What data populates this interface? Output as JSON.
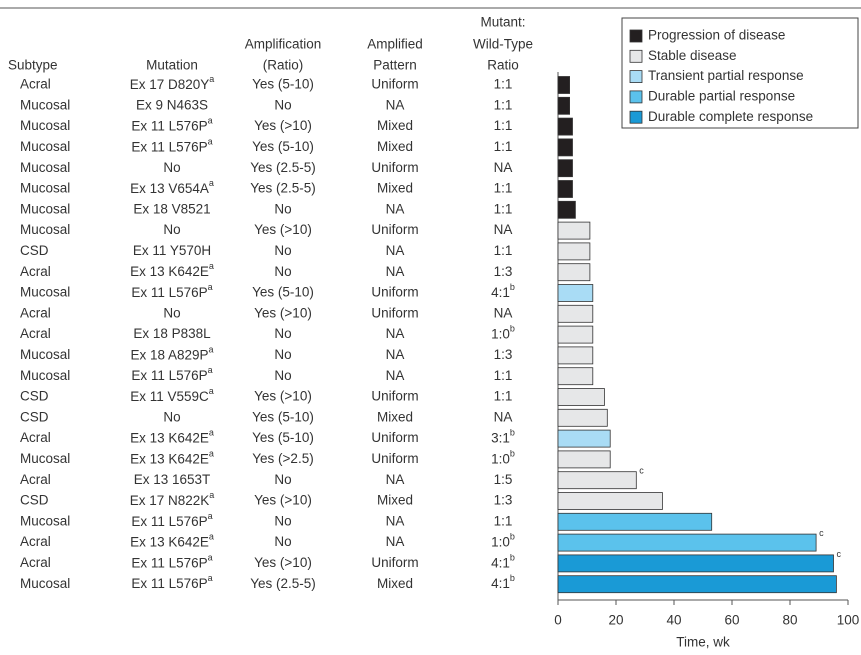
{
  "chart_data": {
    "type": "bar",
    "orientation": "horizontal",
    "columns": [
      [
        "Subtype"
      ],
      [
        "Mutation"
      ],
      [
        "Amplification",
        "(Ratio)"
      ],
      [
        "Amplified",
        "Pattern"
      ],
      [
        "Mutant:",
        "Wild-Type",
        "Ratio"
      ]
    ],
    "rows": [
      [
        "Acral",
        {
          "text": "Ex 17 D820Y",
          "sup": "a"
        },
        "Yes (5-10)",
        "Uniform",
        "1:1"
      ],
      [
        "Mucosal",
        "Ex 9 N463S",
        "No",
        "NA",
        "1:1"
      ],
      [
        "Mucosal",
        {
          "text": "Ex 11 L576P",
          "sup": "a"
        },
        "Yes (>10)",
        "Mixed",
        "1:1"
      ],
      [
        "Mucosal",
        {
          "text": "Ex 11 L576P",
          "sup": "a"
        },
        "Yes (5-10)",
        "Mixed",
        "1:1"
      ],
      [
        "Mucosal",
        "No",
        "Yes (2.5-5)",
        "Uniform",
        "NA"
      ],
      [
        "Mucosal",
        {
          "text": "Ex 13 V654A",
          "sup": "a"
        },
        "Yes (2.5-5)",
        "Mixed",
        "1:1"
      ],
      [
        "Mucosal",
        "Ex 18 V8521",
        "No",
        "NA",
        "1:1"
      ],
      [
        "Mucosal",
        "No",
        "Yes (>10)",
        "Uniform",
        "NA"
      ],
      [
        "CSD",
        "Ex 11 Y570H",
        "No",
        "NA",
        "1:1"
      ],
      [
        "Acral",
        {
          "text": "Ex 13 K642E",
          "sup": "a"
        },
        "No",
        "NA",
        "1:3"
      ],
      [
        "Mucosal",
        {
          "text": "Ex 11 L576P",
          "sup": "a"
        },
        "Yes (5-10)",
        "Uniform",
        {
          "text": "4:1",
          "sup": "b"
        }
      ],
      [
        "Acral",
        "No",
        "Yes (>10)",
        "Uniform",
        "NA"
      ],
      [
        "Acral",
        "Ex 18 P838L",
        "No",
        "NA",
        {
          "text": "1:0",
          "sup": "b"
        }
      ],
      [
        "Mucosal",
        {
          "text": "Ex 18 A829P",
          "sup": "a"
        },
        "No",
        "NA",
        "1:3"
      ],
      [
        "Mucosal",
        {
          "text": "Ex 11 L576P",
          "sup": "a"
        },
        "No",
        "NA",
        "1:1"
      ],
      [
        "CSD",
        {
          "text": "Ex 11 V559C",
          "sup": "a"
        },
        "Yes (>10)",
        "Uniform",
        "1:1"
      ],
      [
        "CSD",
        "No",
        "Yes (5-10)",
        "Mixed",
        "NA"
      ],
      [
        "Acral",
        {
          "text": "Ex 13 K642E",
          "sup": "a"
        },
        "Yes (5-10)",
        "Uniform",
        {
          "text": "3:1",
          "sup": "b"
        }
      ],
      [
        "Mucosal",
        {
          "text": "Ex 13 K642E",
          "sup": "a"
        },
        "Yes (>2.5)",
        "Uniform",
        {
          "text": "1:0",
          "sup": "b"
        }
      ],
      [
        "Acral",
        "Ex 13 1653T",
        "No",
        "NA",
        "1:5"
      ],
      [
        "CSD",
        {
          "text": "Ex 17 N822K",
          "sup": "a"
        },
        "Yes (>10)",
        "Mixed",
        "1:3"
      ],
      [
        "Mucosal",
        {
          "text": "Ex 11 L576P",
          "sup": "a"
        },
        "No",
        "NA",
        "1:1"
      ],
      [
        "Acral",
        {
          "text": "Ex 13 K642E",
          "sup": "a"
        },
        "No",
        "NA",
        {
          "text": "1:0",
          "sup": "b"
        }
      ],
      [
        "Acral",
        {
          "text": "Ex 11 L576P",
          "sup": "a"
        },
        "Yes (>10)",
        "Uniform",
        {
          "text": "4:1",
          "sup": "b"
        }
      ],
      [
        "Mucosal",
        {
          "text": "Ex 11 L576P",
          "sup": "a"
        },
        "Yes (2.5-5)",
        "Mixed",
        {
          "text": "4:1",
          "sup": "b"
        }
      ]
    ],
    "series": [
      {
        "name": "Progression of disease",
        "color": "#231f20",
        "values": [
          4,
          4,
          5,
          5,
          5,
          5,
          6,
          null,
          null,
          null,
          null,
          null,
          null,
          null,
          null,
          null,
          null,
          null,
          null,
          null,
          null,
          null,
          null,
          null,
          null
        ]
      },
      {
        "name": "Stable disease",
        "color": "#e6e7e8",
        "values": [
          null,
          null,
          null,
          null,
          null,
          null,
          null,
          11,
          11,
          11,
          null,
          12,
          12,
          12,
          12,
          16,
          17,
          null,
          18,
          27,
          36,
          null,
          null,
          null,
          null
        ]
      },
      {
        "name": "Transient partial response",
        "color": "#a9dcf5",
        "values": [
          null,
          null,
          null,
          null,
          null,
          null,
          null,
          null,
          null,
          null,
          12,
          null,
          null,
          null,
          null,
          null,
          null,
          18,
          null,
          null,
          null,
          null,
          null,
          null,
          null
        ]
      },
      {
        "name": "Durable partial response",
        "color": "#5bc2ec",
        "values": [
          null,
          null,
          null,
          null,
          null,
          null,
          null,
          null,
          null,
          null,
          null,
          null,
          null,
          null,
          null,
          null,
          null,
          null,
          null,
          null,
          null,
          53,
          89,
          null,
          null
        ]
      },
      {
        "name": "Durable complete response",
        "color": "#1a9ad6",
        "values": [
          null,
          null,
          null,
          null,
          null,
          null,
          null,
          null,
          null,
          null,
          null,
          null,
          null,
          null,
          null,
          null,
          null,
          null,
          null,
          null,
          null,
          null,
          null,
          95,
          96
        ]
      }
    ],
    "bar_notes": [
      null,
      null,
      null,
      null,
      null,
      null,
      null,
      null,
      null,
      null,
      null,
      null,
      null,
      null,
      null,
      null,
      null,
      null,
      null,
      "c",
      null,
      null,
      "c",
      "c",
      null
    ],
    "xlim": [
      0,
      100
    ],
    "xticks": [
      0,
      20,
      40,
      60,
      80,
      100
    ],
    "xlabel": "Time, wk"
  }
}
